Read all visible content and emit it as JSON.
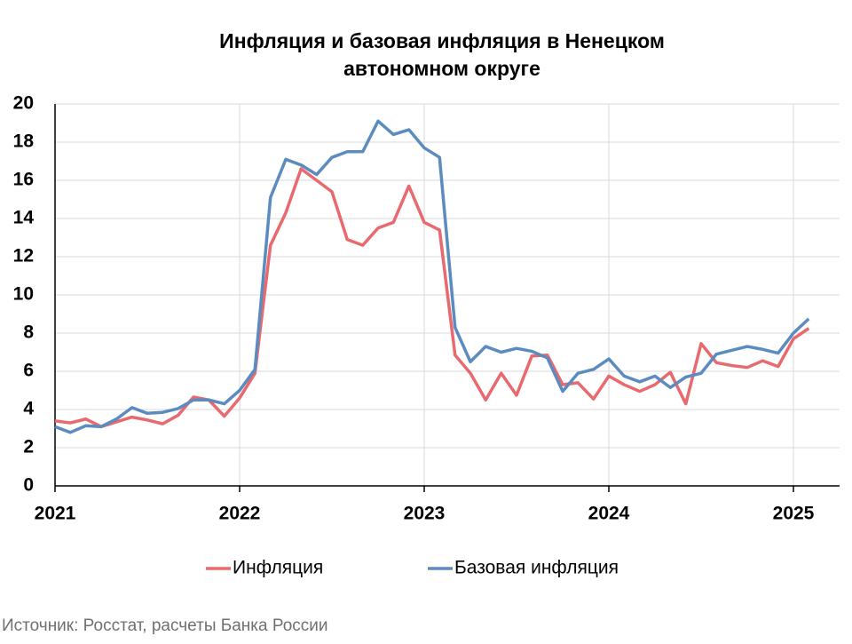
{
  "chart_data": {
    "type": "line",
    "title": "Инфляция и базовая инфляция в Ненецком автономном округе",
    "source": "Источник: Росстат, расчеты Банка России",
    "x": [
      2021,
      2021.083,
      2021.167,
      2021.25,
      2021.333,
      2021.417,
      2021.5,
      2021.583,
      2021.667,
      2021.75,
      2021.833,
      2021.917,
      2022,
      2022.083,
      2022.167,
      2022.25,
      2022.333,
      2022.417,
      2022.5,
      2022.583,
      2022.667,
      2022.75,
      2022.833,
      2022.917,
      2023,
      2023.083,
      2023.167,
      2023.25,
      2023.333,
      2023.417,
      2023.5,
      2023.583,
      2023.667,
      2023.75,
      2023.833,
      2023.917,
      2024,
      2024.083,
      2024.167,
      2024.25,
      2024.333,
      2024.417,
      2024.5,
      2024.583,
      2024.667,
      2024.75,
      2024.833,
      2024.917,
      2025,
      2025.083
    ],
    "series": [
      {
        "name": "Инфляция",
        "color": "#e8696e",
        "values": [
          3.4,
          3.3,
          3.5,
          3.1,
          3.35,
          3.6,
          3.45,
          3.25,
          3.7,
          4.65,
          4.5,
          3.65,
          4.6,
          5.9,
          12.6,
          14.3,
          16.6,
          16.0,
          15.4,
          12.9,
          12.6,
          13.5,
          13.8,
          15.7,
          13.8,
          13.4,
          6.85,
          5.9,
          4.5,
          5.9,
          4.75,
          6.8,
          6.85,
          5.3,
          5.4,
          4.55,
          5.75,
          5.3,
          4.95,
          5.3,
          5.95,
          4.3,
          7.45,
          6.45,
          6.3,
          6.2,
          6.55,
          6.25,
          7.7,
          8.25
        ]
      },
      {
        "name": "Базовая инфляция",
        "color": "#5b8bbf",
        "values": [
          3.1,
          2.8,
          3.15,
          3.1,
          3.5,
          4.1,
          3.8,
          3.85,
          4.05,
          4.5,
          4.5,
          4.3,
          5.0,
          6.1,
          15.1,
          17.1,
          16.8,
          16.3,
          17.2,
          17.5,
          17.5,
          19.1,
          18.4,
          18.65,
          17.7,
          17.2,
          8.3,
          6.5,
          7.3,
          7.0,
          7.2,
          7.05,
          6.7,
          4.95,
          5.9,
          6.1,
          6.65,
          5.75,
          5.45,
          5.75,
          5.15,
          5.7,
          5.9,
          6.9,
          7.1,
          7.3,
          7.15,
          6.95,
          8.0,
          8.75
        ]
      }
    ],
    "xlim": [
      2021,
      2025.25
    ],
    "xticks": [
      2021,
      2022,
      2023,
      2024,
      2025
    ],
    "ylim": [
      0,
      20
    ],
    "yticks": [
      0,
      2,
      4,
      6,
      8,
      10,
      12,
      14,
      16,
      18,
      20
    ],
    "grid": true,
    "legend": "bottom"
  }
}
